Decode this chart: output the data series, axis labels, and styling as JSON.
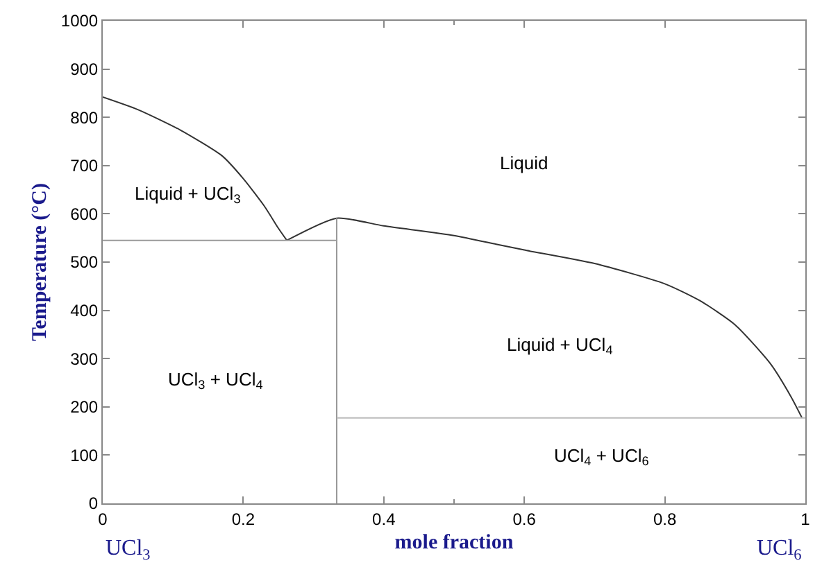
{
  "chart_data": {
    "type": "line",
    "xlabel": "mole fraction",
    "ylabel": "Temperature (°C)",
    "xlim": [
      0,
      1
    ],
    "xticks": [
      0,
      0.2,
      0.4,
      0.6,
      0.8,
      1
    ],
    "ylim": [
      0,
      1000
    ],
    "yticks": [
      0,
      100,
      200,
      300,
      400,
      500,
      600,
      700,
      800,
      900,
      1000
    ],
    "marker": "none",
    "line_style": "solid",
    "series": [
      {
        "color": "#333333",
        "x": [
          0,
          0.05,
          0.11,
          0.17,
          0.2,
          0.23,
          0.25,
          0.262
        ],
        "values": [
          842,
          816,
          774,
          720,
          673,
          616,
          570,
          545
        ]
      },
      {
        "color": "#333333",
        "x": [
          0.262,
          0.333,
          0.4,
          0.5,
          0.56,
          0.6,
          0.7,
          0.8,
          0.85,
          0.9,
          0.95,
          0.98,
          0.995
        ],
        "values": [
          545,
          591,
          575,
          555,
          537,
          525,
          497,
          455,
          420,
          370,
          290,
          220,
          178
        ]
      },
      {
        "color": "#999999",
        "x": [
          0,
          0.333
        ],
        "values": [
          545,
          545
        ]
      },
      {
        "color": "#999999",
        "x": [
          0.333,
          0.333
        ],
        "values": [
          0,
          591
        ]
      },
      {
        "color": "#bbbbbb",
        "x": [
          0.333,
          1
        ],
        "values": [
          177,
          177
        ]
      }
    ],
    "annotations": [
      "Liquid",
      "Liquid + UCl$_{3}$",
      "Liquid + UCl$_{4}$",
      "UCl$_{3}$ + UCl$_{4}$",
      "UCl$_{4}$ + UCl$_{6}$",
      "UCl$_{3}$",
      "UCl$_{6}$"
    ]
  }
}
